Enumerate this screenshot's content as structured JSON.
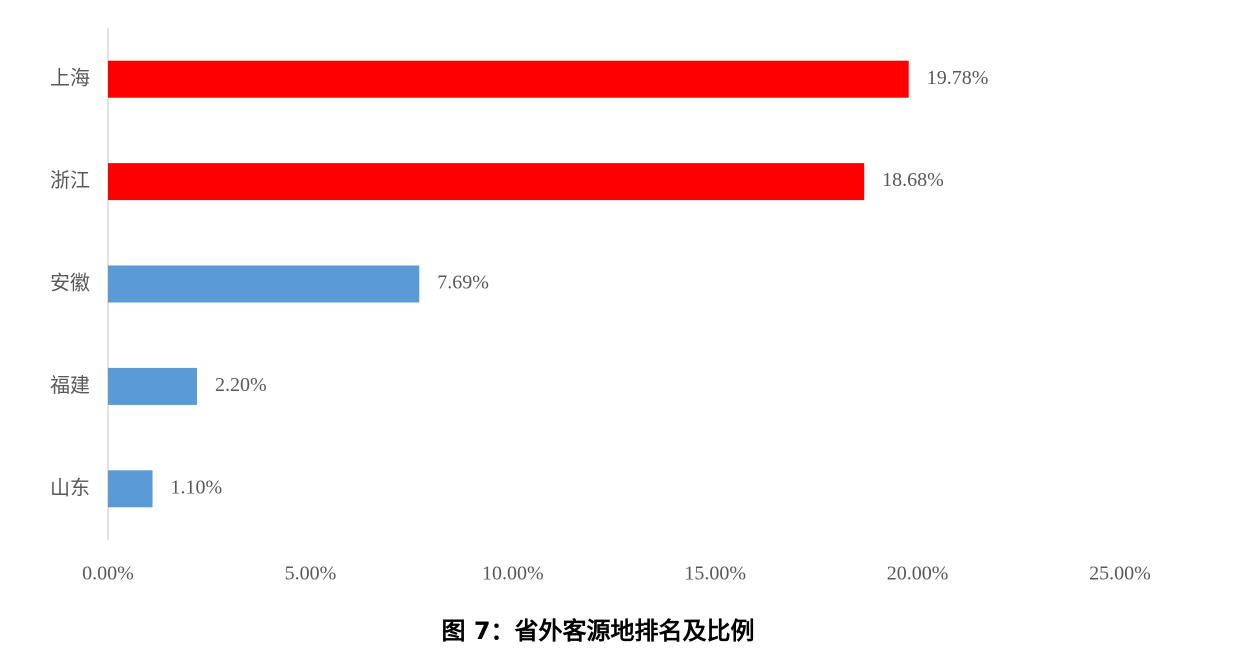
{
  "chart_data": {
    "type": "hbar",
    "title": "图 7：省外客源地排名及比例",
    "categories": [
      "上海",
      "浙江",
      "安徽",
      "福建",
      "山东"
    ],
    "values": [
      19.78,
      18.68,
      7.69,
      2.2,
      1.1
    ],
    "value_labels": [
      "19.78%",
      "18.68%",
      "7.69%",
      "2.20%",
      "1.10%"
    ],
    "colors": [
      "#ff0000",
      "#ff0000",
      "#5b9bd5",
      "#5b9bd5",
      "#5b9bd5"
    ],
    "xlim": [
      0,
      25
    ],
    "xticks": [
      {
        "value": 0,
        "label": "0.00%"
      },
      {
        "value": 5,
        "label": "5.00%"
      },
      {
        "value": 10,
        "label": "10.00%"
      },
      {
        "value": 15,
        "label": "15.00%"
      },
      {
        "value": 20,
        "label": "20.00%"
      },
      {
        "value": 25,
        "label": "25.00%"
      }
    ],
    "grid": false
  }
}
